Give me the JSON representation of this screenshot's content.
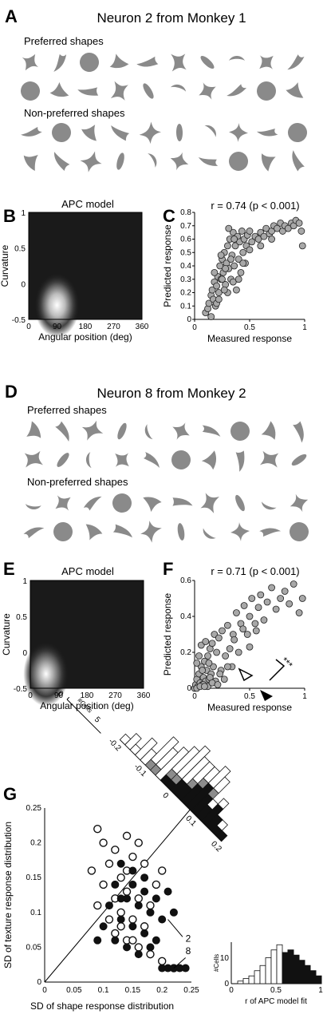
{
  "colors": {
    "shape": "#8a8a8a",
    "marker_fill": "#a8a8a8",
    "dark": "#111111",
    "mid_bar": "#8c8c8c"
  },
  "panelA": {
    "label": "A",
    "title": "Neuron 2 from Monkey 1",
    "preferred_label": "Preferred shapes",
    "nonpreferred_label": "Non-preferred shapes",
    "preferred_count": 20,
    "nonpreferred_count": 20
  },
  "panelB": {
    "label": "B"
  },
  "panelC": {
    "label": "C"
  },
  "panelD": {
    "label": "D",
    "title": "Neuron 8 from Monkey 2",
    "preferred_label": "Preferred shapes",
    "nonpreferred_label": "Non-preferred shapes",
    "preferred_count": 20,
    "nonpreferred_count": 20
  },
  "panelE": {
    "label": "E"
  },
  "panelF": {
    "label": "F"
  },
  "panelG": {
    "label": "G",
    "significance": "***",
    "histogram_axis_label": "#Cells",
    "histogram_tick": "5",
    "histogram_zero": "0",
    "diag_ticks": [
      "-0.2",
      "-0.1",
      "0",
      "0.1",
      "0.2"
    ],
    "inset_xlabel": "r of APC model fit",
    "inset_ylabel": "#Cells"
  },
  "chart_data": [
    {
      "id": "B",
      "type": "heatmap",
      "title": "APC model",
      "xlabel": "Angular position (deg)",
      "ylabel": "Curvature",
      "xlim": [
        0,
        360
      ],
      "ylim": [
        -0.5,
        1
      ],
      "xticks": [
        "0",
        "90",
        "180",
        "270",
        "360"
      ],
      "yticks": [
        "-0.5",
        "0",
        "0.5",
        "1"
      ],
      "peak": {
        "x": 90,
        "y": -0.3
      }
    },
    {
      "id": "C",
      "type": "scatter",
      "annotation": "r = 0.74 (p < 0.001)",
      "xlabel": "Measured response",
      "ylabel": "Predicted response",
      "xlim": [
        0,
        1
      ],
      "ylim": [
        0,
        0.8
      ],
      "xticks": [
        "0",
        "0.5",
        "1"
      ],
      "yticks": [
        "0",
        "0.1",
        "0.2",
        "0.3",
        "0.4",
        "0.5",
        "0.6",
        "0.7",
        "0.8"
      ],
      "points": [
        [
          0.1,
          0.05
        ],
        [
          0.12,
          0.08
        ],
        [
          0.13,
          0.12
        ],
        [
          0.15,
          0.18
        ],
        [
          0.16,
          0.22
        ],
        [
          0.17,
          0.15
        ],
        [
          0.18,
          0.28
        ],
        [
          0.19,
          0.1
        ],
        [
          0.2,
          0.25
        ],
        [
          0.21,
          0.32
        ],
        [
          0.22,
          0.2
        ],
        [
          0.23,
          0.4
        ],
        [
          0.24,
          0.3
        ],
        [
          0.25,
          0.45
        ],
        [
          0.26,
          0.35
        ],
        [
          0.27,
          0.5
        ],
        [
          0.28,
          0.26
        ],
        [
          0.29,
          0.42
        ],
        [
          0.3,
          0.55
        ],
        [
          0.31,
          0.38
        ],
        [
          0.32,
          0.6
        ],
        [
          0.33,
          0.3
        ],
        [
          0.34,
          0.48
        ],
        [
          0.35,
          0.65
        ],
        [
          0.36,
          0.4
        ],
        [
          0.37,
          0.55
        ],
        [
          0.38,
          0.22
        ],
        [
          0.39,
          0.62
        ],
        [
          0.4,
          0.45
        ],
        [
          0.41,
          0.58
        ],
        [
          0.42,
          0.35
        ],
        [
          0.43,
          0.66
        ],
        [
          0.44,
          0.5
        ],
        [
          0.45,
          0.6
        ],
        [
          0.46,
          0.42
        ],
        [
          0.47,
          0.55
        ],
        [
          0.48,
          0.63
        ],
        [
          0.5,
          0.52
        ],
        [
          0.52,
          0.58
        ],
        [
          0.55,
          0.62
        ],
        [
          0.58,
          0.6
        ],
        [
          0.6,
          0.65
        ],
        [
          0.63,
          0.62
        ],
        [
          0.65,
          0.68
        ],
        [
          0.68,
          0.64
        ],
        [
          0.7,
          0.66
        ],
        [
          0.72,
          0.7
        ],
        [
          0.75,
          0.68
        ],
        [
          0.78,
          0.72
        ],
        [
          0.8,
          0.66
        ],
        [
          0.82,
          0.7
        ],
        [
          0.85,
          0.68
        ],
        [
          0.88,
          0.72
        ],
        [
          0.9,
          0.7
        ],
        [
          0.92,
          0.74
        ],
        [
          0.95,
          0.72
        ],
        [
          0.97,
          0.66
        ],
        [
          0.98,
          0.55
        ],
        [
          0.2,
          0.12
        ],
        [
          0.25,
          0.3
        ],
        [
          0.3,
          0.2
        ],
        [
          0.35,
          0.28
        ],
        [
          0.22,
          0.15
        ],
        [
          0.28,
          0.38
        ],
        [
          0.33,
          0.45
        ],
        [
          0.4,
          0.3
        ],
        [
          0.27,
          0.22
        ],
        [
          0.18,
          0.35
        ],
        [
          0.15,
          0.02
        ],
        [
          0.24,
          0.48
        ],
        [
          0.31,
          0.68
        ],
        [
          0.36,
          0.6
        ],
        [
          0.44,
          0.42
        ],
        [
          0.5,
          0.66
        ],
        [
          0.6,
          0.55
        ],
        [
          0.7,
          0.6
        ]
      ]
    },
    {
      "id": "E",
      "type": "heatmap",
      "title": "APC model",
      "xlabel": "Angular position (deg)",
      "ylabel": "Curvature",
      "xlim": [
        0,
        360
      ],
      "ylim": [
        -0.5,
        1
      ],
      "xticks": [
        "0",
        "90",
        "180",
        "270",
        "360"
      ],
      "yticks": [
        "-0.5",
        "0",
        "0.5",
        "1"
      ],
      "peak": {
        "x": 50,
        "y": -0.3
      }
    },
    {
      "id": "F",
      "type": "scatter",
      "annotation": "r = 0.71 (p < 0.001)",
      "xlabel": "Measured response",
      "ylabel": "Predicted response",
      "xlim": [
        0,
        1
      ],
      "ylim": [
        0,
        0.6
      ],
      "xticks": [
        "0",
        "0.5",
        "1"
      ],
      "yticks": [
        "0",
        "0.2",
        "0.4",
        "0.6"
      ],
      "points": [
        [
          0.0,
          0.0
        ],
        [
          0.01,
          0.02
        ],
        [
          0.02,
          0.05
        ],
        [
          0.03,
          0.01
        ],
        [
          0.04,
          0.08
        ],
        [
          0.05,
          0.03
        ],
        [
          0.06,
          0.12
        ],
        [
          0.07,
          0.02
        ],
        [
          0.08,
          0.06
        ],
        [
          0.09,
          0.15
        ],
        [
          0.1,
          0.04
        ],
        [
          0.11,
          0.1
        ],
        [
          0.12,
          0.18
        ],
        [
          0.13,
          0.05
        ],
        [
          0.14,
          0.22
        ],
        [
          0.15,
          0.08
        ],
        [
          0.16,
          0.25
        ],
        [
          0.17,
          0.12
        ],
        [
          0.18,
          0.3
        ],
        [
          0.19,
          0.04
        ],
        [
          0.2,
          0.2
        ],
        [
          0.22,
          0.28
        ],
        [
          0.24,
          0.1
        ],
        [
          0.25,
          0.32
        ],
        [
          0.27,
          0.05
        ],
        [
          0.28,
          0.18
        ],
        [
          0.3,
          0.35
        ],
        [
          0.32,
          0.22
        ],
        [
          0.34,
          0.12
        ],
        [
          0.35,
          0.3
        ],
        [
          0.38,
          0.42
        ],
        [
          0.4,
          0.2
        ],
        [
          0.42,
          0.36
        ],
        [
          0.45,
          0.46
        ],
        [
          0.48,
          0.3
        ],
        [
          0.5,
          0.4
        ],
        [
          0.52,
          0.5
        ],
        [
          0.55,
          0.36
        ],
        [
          0.58,
          0.45
        ],
        [
          0.6,
          0.52
        ],
        [
          0.63,
          0.38
        ],
        [
          0.66,
          0.48
        ],
        [
          0.7,
          0.56
        ],
        [
          0.74,
          0.44
        ],
        [
          0.78,
          0.5
        ],
        [
          0.82,
          0.54
        ],
        [
          0.86,
          0.47
        ],
        [
          0.9,
          0.58
        ],
        [
          0.95,
          0.42
        ],
        [
          0.98,
          0.5
        ],
        [
          0.02,
          0.14
        ],
        [
          0.04,
          0.18
        ],
        [
          0.06,
          0.24
        ],
        [
          0.08,
          0.02
        ],
        [
          0.1,
          0.26
        ],
        [
          0.12,
          0.01
        ],
        [
          0.14,
          0.06
        ],
        [
          0.16,
          0.03
        ],
        [
          0.02,
          0.0
        ],
        [
          0.05,
          0.01
        ],
        [
          0.07,
          0.1
        ],
        [
          0.09,
          0.01
        ],
        [
          0.13,
          0.14
        ],
        [
          0.21,
          0.02
        ],
        [
          0.23,
          0.08
        ],
        [
          0.3,
          0.12
        ],
        [
          0.36,
          0.27
        ],
        [
          0.44,
          0.33
        ],
        [
          0.5,
          0.23
        ],
        [
          0.56,
          0.32
        ]
      ]
    },
    {
      "id": "G",
      "type": "scatter",
      "xlabel": "SD of shape response distribution",
      "ylabel": "SD of texture response distribution",
      "xlim": [
        0,
        0.25
      ],
      "ylim": [
        0,
        0.25
      ],
      "xticks": [
        "0",
        "0.05",
        "0.1",
        "0.15",
        "0.2",
        "0.25"
      ],
      "yticks": [
        "0",
        "0.05",
        "0.1",
        "0.15",
        "0.2",
        "0.25"
      ],
      "annotations": [
        "2",
        "8"
      ],
      "series": [
        {
          "name": "monkey 1 (open)",
          "points": [
            [
              0.09,
              0.22
            ],
            [
              0.1,
              0.2
            ],
            [
              0.12,
              0.19
            ],
            [
              0.14,
              0.21
            ],
            [
              0.11,
              0.17
            ],
            [
              0.13,
              0.15
            ],
            [
              0.15,
              0.18
            ],
            [
              0.16,
              0.2
            ],
            [
              0.08,
              0.16
            ],
            [
              0.1,
              0.14
            ],
            [
              0.12,
              0.12
            ],
            [
              0.14,
              0.13
            ],
            [
              0.16,
              0.12
            ],
            [
              0.18,
              0.11
            ],
            [
              0.13,
              0.1
            ],
            [
              0.15,
              0.09
            ],
            [
              0.17,
              0.08
            ],
            [
              0.12,
              0.07
            ],
            [
              0.14,
              0.06
            ],
            [
              0.16,
              0.05
            ],
            [
              0.18,
              0.04
            ],
            [
              0.2,
              0.03
            ],
            [
              0.22,
              0.02
            ],
            [
              0.11,
              0.09
            ],
            [
              0.13,
              0.08
            ],
            [
              0.19,
              0.14
            ],
            [
              0.2,
              0.16
            ],
            [
              0.09,
              0.11
            ],
            [
              0.17,
              0.17
            ],
            [
              0.14,
              0.16
            ],
            [
              0.15,
              0.06
            ]
          ]
        },
        {
          "name": "monkey 2 (filled)",
          "points": [
            [
              0.13,
              0.17
            ],
            [
              0.15,
              0.16
            ],
            [
              0.17,
              0.15
            ],
            [
              0.12,
              0.14
            ],
            [
              0.14,
              0.12
            ],
            [
              0.16,
              0.11
            ],
            [
              0.18,
              0.1
            ],
            [
              0.2,
              0.09
            ],
            [
              0.11,
              0.11
            ],
            [
              0.13,
              0.09
            ],
            [
              0.15,
              0.08
            ],
            [
              0.17,
              0.07
            ],
            [
              0.19,
              0.06
            ],
            [
              0.14,
              0.05
            ],
            [
              0.16,
              0.04
            ],
            [
              0.18,
              0.05
            ],
            [
              0.2,
              0.02
            ],
            [
              0.21,
              0.02
            ],
            [
              0.22,
              0.02
            ],
            [
              0.23,
              0.02
            ],
            [
              0.24,
              0.02
            ],
            [
              0.1,
              0.08
            ],
            [
              0.12,
              0.06
            ],
            [
              0.19,
              0.12
            ],
            [
              0.21,
              0.13
            ],
            [
              0.22,
              0.1
            ],
            [
              0.17,
              0.13
            ],
            [
              0.15,
              0.14
            ],
            [
              0.13,
              0.12
            ],
            [
              0.09,
              0.06
            ]
          ]
        }
      ],
      "histograms": [
        {
          "name": "diagonal difference histogram",
          "bins": [
            "-0.2",
            "-0.1",
            "0",
            "0.1",
            "0.2"
          ],
          "open": [
            1,
            2,
            1,
            3,
            2,
            4,
            3,
            5,
            4,
            5,
            4,
            3,
            2,
            3,
            2,
            1,
            1,
            0,
            1,
            0
          ],
          "gray": [
            0,
            0,
            0,
            0,
            0,
            1,
            1,
            0,
            1,
            1,
            0,
            1,
            1,
            0,
            1,
            0,
            0,
            0,
            0,
            0
          ],
          "filled": [
            0,
            0,
            0,
            0,
            0,
            0,
            0,
            0,
            1,
            1,
            2,
            2,
            3,
            4,
            3,
            2,
            3,
            2,
            1,
            1
          ]
        },
        {
          "name": "inset r of APC model fit",
          "xlim": [
            0,
            1
          ],
          "xticks": [
            "0",
            "0.5",
            "1"
          ],
          "yticks": [
            "0",
            "10"
          ],
          "open": [
            1,
            2,
            3,
            5,
            7,
            10,
            13,
            15
          ],
          "filled": [
            12,
            13,
            11,
            9,
            7,
            5,
            3
          ]
        }
      ]
    }
  ]
}
